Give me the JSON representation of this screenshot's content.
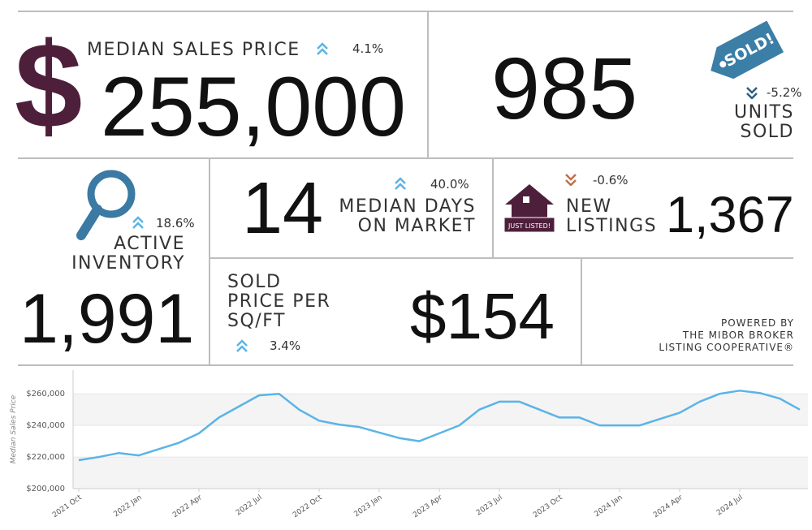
{
  "median_price": {
    "symbol": "$",
    "label": "MEDIAN SALES PRICE",
    "change": "4.1%",
    "value": "255,000"
  },
  "units_sold": {
    "value": "985",
    "badge": "SOLD!",
    "change": "-5.2%",
    "label": [
      "UNITS",
      "SOLD"
    ]
  },
  "active_inventory": {
    "change": "18.6%",
    "label": [
      "ACTIVE",
      "INVENTORY"
    ],
    "value": "1,991"
  },
  "days_on_market": {
    "value": "14",
    "change": "40.0%",
    "label": [
      "MEDIAN DAYS",
      "ON MARKET"
    ]
  },
  "new_listings": {
    "sign": "JUST LISTED!",
    "change": "-0.6%",
    "label": [
      "NEW",
      "LISTINGS"
    ],
    "value": "1,367"
  },
  "price_per_sqft": {
    "label": [
      "SOLD",
      "PRICE PER",
      "SQ/FT"
    ],
    "value": "$154",
    "change": "3.4%"
  },
  "powered_by": [
    "POWERED BY",
    "THE MIBOR BROKER",
    "LISTING COOPERATIVE®"
  ],
  "chart_data": {
    "type": "line",
    "y_label": "Median Sales Price",
    "categories": [
      "2021 Oct",
      null,
      null,
      "2022 Jan",
      null,
      null,
      "2022 Apr",
      null,
      null,
      "2022 Jul",
      null,
      null,
      "2022 Oct",
      null,
      null,
      "2023 Jan",
      null,
      null,
      "2023 Apr",
      null,
      null,
      "2023 Jul",
      null,
      null,
      "2023 Oct",
      null,
      null,
      "2024 Jan",
      null,
      null,
      "2024 Apr",
      null,
      null,
      "2024 Jul",
      null,
      null,
      null
    ],
    "series": [
      {
        "name": "Median Sales Price",
        "color": "#5ab4e6",
        "values": [
          218000,
          220000,
          222500,
          221000,
          225000,
          229000,
          235000,
          245000,
          252000,
          259000,
          260000,
          250000,
          243000,
          240500,
          239000,
          235500,
          232000,
          230000,
          235000,
          240000,
          250000,
          255000,
          255000,
          250000,
          245000,
          245000,
          240000,
          240000,
          240000,
          244000,
          248000,
          255000,
          260000,
          262000,
          260500,
          257000,
          250000
        ]
      }
    ],
    "ylim": [
      200000,
      275000
    ],
    "yticks": [
      {
        "value": 200000,
        "label": "$200,000"
      },
      {
        "value": 220000,
        "label": "$220,000"
      },
      {
        "value": 240000,
        "label": "$240,000"
      },
      {
        "value": 260000,
        "label": "$260,000"
      }
    ],
    "grid": true
  }
}
